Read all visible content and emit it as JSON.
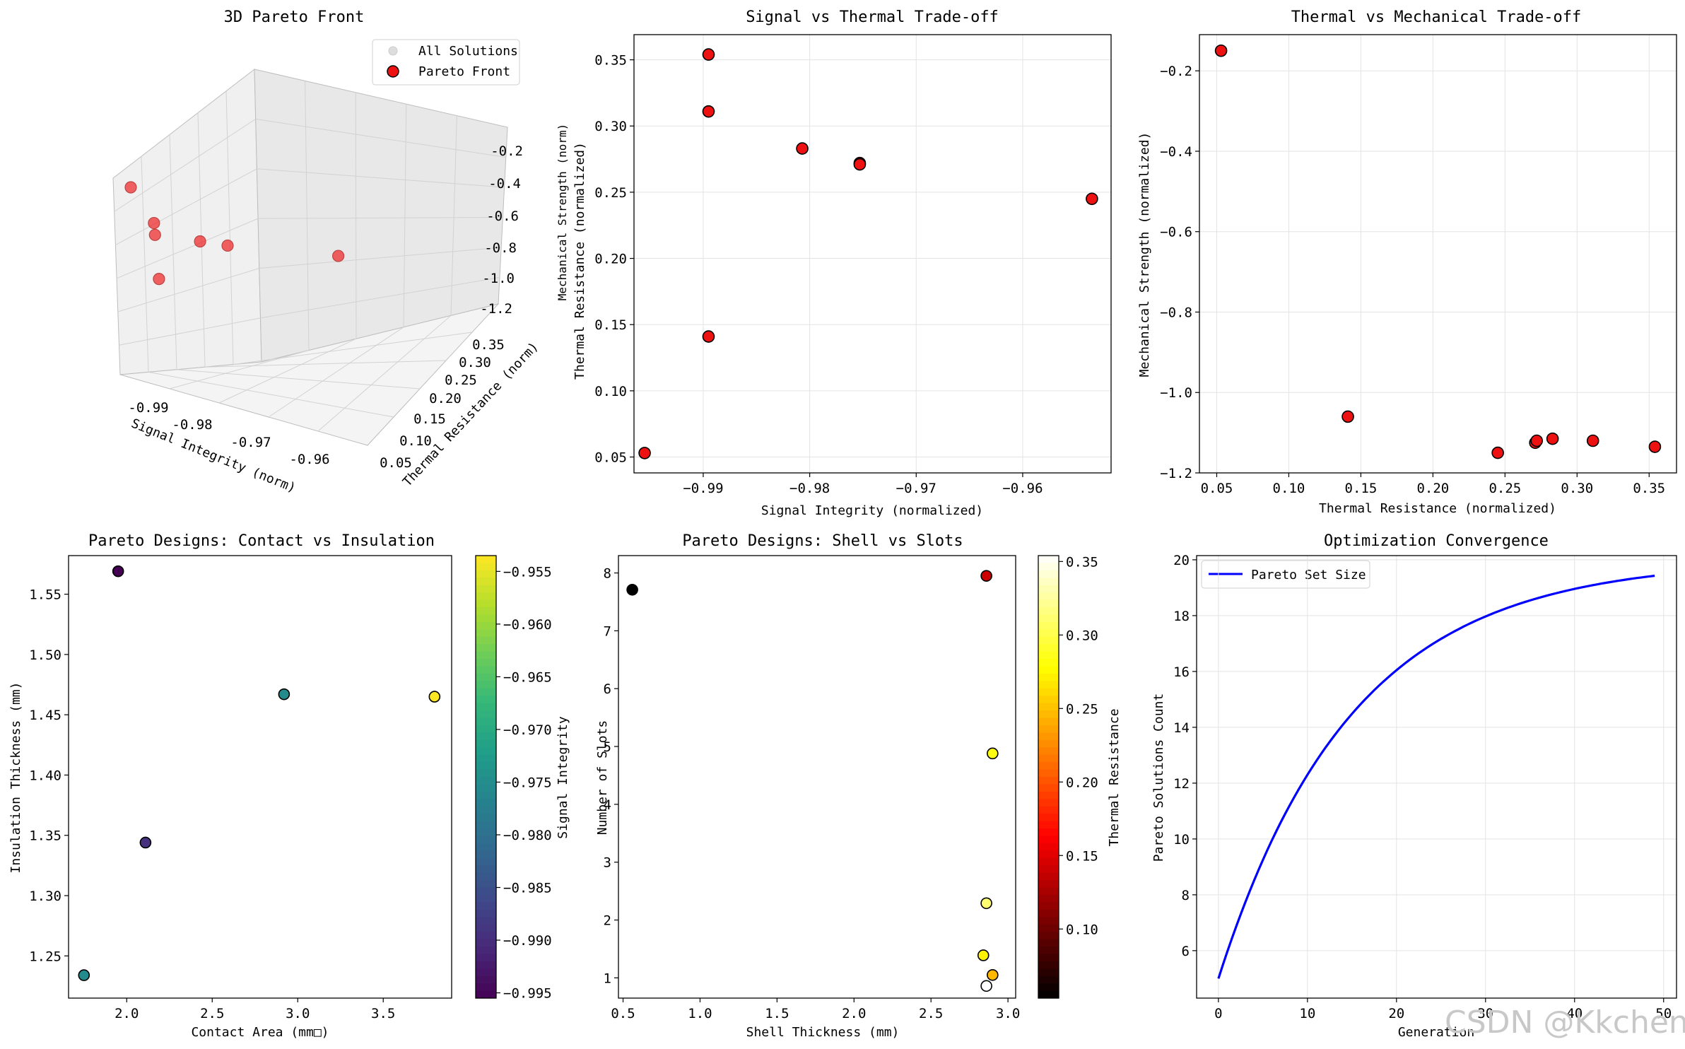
{
  "watermark": "CSDN @Kkchenjj",
  "chart_data": [
    {
      "id": "p3d",
      "type": "scatter3d",
      "title": "3D Pareto Front",
      "xlabel": "Signal Integrity (norm)",
      "ylabel": "Thermal Resistance (norm)",
      "zlabel": "Mechanical Strength (norm)",
      "xticks": [
        "-0.99",
        "-0.98",
        "-0.97",
        "-0.96"
      ],
      "yticks": [
        "0.05",
        "0.10",
        "0.15",
        "0.20",
        "0.25",
        "0.30",
        "0.35"
      ],
      "zticks": [
        "-0.2",
        "-0.4",
        "-0.6",
        "-0.8",
        "-1.0",
        "-1.2"
      ],
      "legend": [
        {
          "label": "All Solutions",
          "color": "#d9d9d9"
        },
        {
          "label": "Pareto Front",
          "color": "#ee1111"
        }
      ],
      "legend_loc": "top-right",
      "points": [
        {
          "x": -0.9955,
          "y": 0.053,
          "z": -0.15
        },
        {
          "x": -0.9895,
          "y": 0.141,
          "z": -1.06
        },
        {
          "x": -0.9895,
          "y": 0.311,
          "z": -1.12
        },
        {
          "x": -0.9895,
          "y": 0.354,
          "z": -1.13
        },
        {
          "x": -0.9807,
          "y": 0.283,
          "z": -1.11
        },
        {
          "x": -0.9753,
          "y": 0.272,
          "z": -1.12
        },
        {
          "x": -0.9535,
          "y": 0.245,
          "z": -1.15
        }
      ]
    },
    {
      "id": "p2",
      "type": "scatter",
      "title": "Signal vs Thermal Trade-off",
      "xlabel": "Signal Integrity (normalized)",
      "ylabel": "Thermal Resistance (normalized)",
      "ylabel2": "Mechanical Strength (norm)",
      "xlim": [
        -0.9965,
        -0.9517
      ],
      "ylim": [
        0.038,
        0.369
      ],
      "xticks": [
        -0.99,
        -0.98,
        -0.97,
        -0.96
      ],
      "xtick_labels": [
        "−0.99",
        "−0.98",
        "−0.97",
        "−0.96"
      ],
      "yticks": [
        0.05,
        0.1,
        0.15,
        0.2,
        0.25,
        0.3,
        0.35
      ],
      "ytick_labels": [
        "0.05",
        "0.10",
        "0.15",
        "0.20",
        "0.25",
        "0.30",
        "0.35"
      ],
      "x": [
        -0.9955,
        -0.9895,
        -0.9895,
        -0.9895,
        -0.9807,
        -0.9753,
        -0.9753,
        -0.9535
      ],
      "y": [
        0.053,
        0.141,
        0.311,
        0.354,
        0.283,
        0.272,
        0.271,
        0.245
      ]
    },
    {
      "id": "p3",
      "type": "scatter",
      "title": "Thermal vs Mechanical Trade-off",
      "xlabel": "Thermal Resistance (normalized)",
      "ylabel": "Mechanical Strength (normalized)",
      "xlim": [
        0.038,
        0.369
      ],
      "ylim": [
        -1.2,
        -0.11
      ],
      "xticks": [
        0.05,
        0.1,
        0.15,
        0.2,
        0.25,
        0.3,
        0.35
      ],
      "xtick_labels": [
        "0.05",
        "0.10",
        "0.15",
        "0.20",
        "0.25",
        "0.30",
        "0.35"
      ],
      "yticks": [
        -0.2,
        -0.4,
        -0.6,
        -0.8,
        -1.0,
        -1.2
      ],
      "ytick_labels": [
        "−0.2",
        "−0.4",
        "−0.6",
        "−0.8",
        "−1.0",
        "−1.2"
      ],
      "x": [
        0.053,
        0.141,
        0.245,
        0.271,
        0.272,
        0.283,
        0.311,
        0.354
      ],
      "y": [
        -0.15,
        -1.06,
        -1.15,
        -1.125,
        -1.12,
        -1.115,
        -1.12,
        -1.135
      ]
    },
    {
      "id": "p4",
      "type": "scatter",
      "title": "Pareto Designs: Contact vs Insulation",
      "xlabel": "Contact Area (mm□)",
      "ylabel": "Insulation Thickness (mm)",
      "xlim": [
        1.66,
        3.9
      ],
      "ylim": [
        1.215,
        1.582
      ],
      "xticks": [
        2.0,
        2.5,
        3.0,
        3.5
      ],
      "xtick_labels": [
        "2.0",
        "2.5",
        "3.0",
        "3.5"
      ],
      "yticks": [
        1.25,
        1.3,
        1.35,
        1.4,
        1.45,
        1.5,
        1.55
      ],
      "ytick_labels": [
        "1.25",
        "1.30",
        "1.35",
        "1.40",
        "1.45",
        "1.50",
        "1.55"
      ],
      "x": [
        1.75,
        1.95,
        2.11,
        2.92,
        3.8
      ],
      "y": [
        1.234,
        1.569,
        1.344,
        1.467,
        1.465
      ],
      "c": [
        -0.9753,
        -0.9955,
        -0.9895,
        -0.9753,
        -0.9535
      ],
      "colorbar": {
        "label": "Signal Integrity",
        "min": -0.9955,
        "max": -0.9535,
        "ticks": [
          -0.995,
          -0.99,
          -0.985,
          -0.98,
          -0.975,
          -0.97,
          -0.965,
          -0.96,
          -0.955
        ],
        "tick_labels": [
          "−0.995",
          "−0.990",
          "−0.985",
          "−0.980",
          "−0.975",
          "−0.970",
          "−0.965",
          "−0.960",
          "−0.955"
        ],
        "colormap": "viridis"
      }
    },
    {
      "id": "p5",
      "type": "scatter",
      "title": "Pareto Designs: Shell vs Slots",
      "xlabel": "Shell Thickness (mm)",
      "ylabel": "Number of Slots",
      "xlim": [
        0.47,
        3.05
      ],
      "ylim": [
        0.65,
        8.3
      ],
      "xticks": [
        0.5,
        1.0,
        1.5,
        2.0,
        2.5,
        3.0
      ],
      "xtick_labels": [
        "0.5",
        "1.0",
        "1.5",
        "2.0",
        "2.5",
        "3.0"
      ],
      "yticks": [
        1,
        2,
        3,
        4,
        5,
        6,
        7,
        8
      ],
      "ytick_labels": [
        "1",
        "2",
        "3",
        "4",
        "5",
        "6",
        "7",
        "8"
      ],
      "x": [
        0.56,
        2.86,
        2.9,
        2.86,
        2.84,
        2.9,
        2.86
      ],
      "y": [
        7.71,
        7.95,
        4.88,
        2.29,
        1.39,
        1.05,
        0.86
      ],
      "c": [
        0.053,
        0.141,
        0.283,
        0.311,
        0.272,
        0.245,
        0.354
      ],
      "colorbar": {
        "label": "Thermal Resistance",
        "min": 0.053,
        "max": 0.354,
        "ticks": [
          0.1,
          0.15,
          0.2,
          0.25,
          0.3,
          0.35
        ],
        "tick_labels": [
          "0.10",
          "0.15",
          "0.20",
          "0.25",
          "0.30",
          "0.35"
        ],
        "colormap": "hot"
      }
    },
    {
      "id": "p6",
      "type": "line",
      "title": "Optimization Convergence",
      "xlabel": "Generation",
      "ylabel": "Pareto Solutions Count",
      "xlim": [
        -2.45,
        51.45
      ],
      "ylim": [
        4.3,
        20.15
      ],
      "xticks": [
        0,
        10,
        20,
        30,
        40,
        50
      ],
      "xtick_labels": [
        "0",
        "10",
        "20",
        "30",
        "40",
        "50"
      ],
      "yticks": [
        6,
        8,
        10,
        12,
        14,
        16,
        18,
        20
      ],
      "ytick_labels": [
        "6",
        "8",
        "10",
        "12",
        "14",
        "16",
        "18",
        "20"
      ],
      "series": [
        {
          "name": "Pareto Set Size",
          "color": "#0000ff",
          "formula": "20 - 15*exp(-x/15)",
          "x_range": [
            0,
            49
          ]
        }
      ],
      "legend_loc": "top-left"
    }
  ]
}
